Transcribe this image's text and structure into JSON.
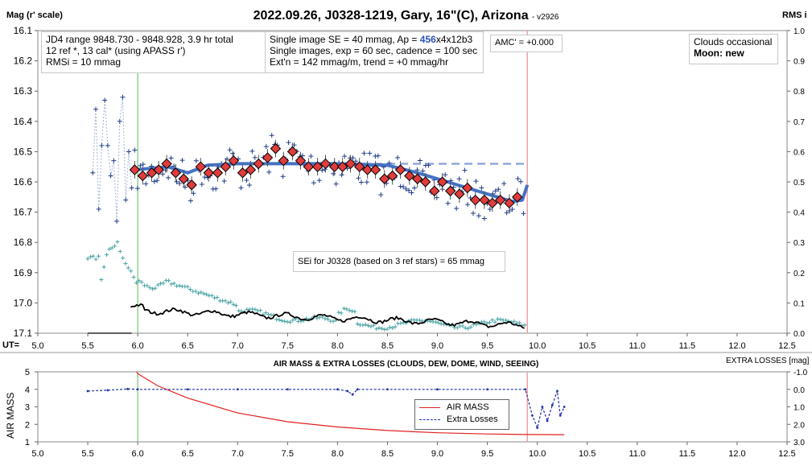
{
  "header": {
    "title": "2022.09.26, J0328-1219, Gary, 16\"(C), Arizona",
    "version": "- v2926",
    "y_label_left": "Mag (r' scale)",
    "y_label_right": "RMS i",
    "x_label": "UT="
  },
  "info_box_1": {
    "line1": "JD4 range 9848.730 - 9848.928, 3.9 hr total",
    "line2": "12 ref *, 13 cal*  (using APASS r')",
    "line3": "RMSi = 10 mmag"
  },
  "info_box_2": {
    "line1_prefix": "Single image SE = 40 mmag, Ap = ",
    "line1_ap": "456",
    "line1_suffix": "x4x12b3",
    "line2": "Single images, exp = 60 sec, cadence = 100 sec",
    "line3": "Ext'n = 142 mmag/m, trend = +0 mmag/hr"
  },
  "amc_box": {
    "text": "AMC' = +0.000"
  },
  "conditions_box": {
    "line1": "Clouds occasional",
    "line2": "Moon: new"
  },
  "sei_box": {
    "text": "SEi for J0328 (based on 3 ref stars) = 65 mmag"
  },
  "lower_panel": {
    "title": "AIR MASS & EXTRA LOSSES (CLOUDS, DEW, DOME, WIND, SEEING)",
    "right_label": "EXTRA LOSSES [mag]",
    "y_label": "AIR MASS",
    "legend": {
      "air_mass": "AIR MASS",
      "extra_losses": "Extra Losses"
    }
  },
  "colors": {
    "fit_line": "#4472c4",
    "binned_marker": "#e03c3c",
    "single_plus": "#1f3c88",
    "rms_plus": "#4aa3a3",
    "green_line": "#90d090",
    "red_line": "#f0a0a0",
    "air_mass_line": "#e02020",
    "extra_losses_line": "#1f2fa8"
  },
  "chart_data": [
    {
      "type": "scatter",
      "x_label": "UT=",
      "ylabel": "Mag (r' scale)",
      "y2label": "RMS i",
      "xlim": [
        5.0,
        12.5
      ],
      "ylim": [
        17.1,
        16.1
      ],
      "y2lim": [
        0.0,
        1.0
      ],
      "x_ticks": [
        "5.0",
        "5.5",
        "6.0",
        "6.5",
        "7.0",
        "7.5",
        "8.0",
        "8.5",
        "9.0",
        "9.5",
        "10.0",
        "10.5",
        "11.0",
        "11.5",
        "12.0",
        "12.5"
      ],
      "y_ticks": [
        "16.1",
        "16.2",
        "16.3",
        "16.4",
        "16.5",
        "16.6",
        "16.7",
        "16.8",
        "16.9",
        "17.0",
        "17.1"
      ],
      "y2_ticks": [
        "1.0",
        "0.9",
        "0.8",
        "0.7",
        "0.6",
        "0.5",
        "0.4",
        "0.3",
        "0.2",
        "0.1",
        "0.0"
      ],
      "vlines": [
        6.0,
        9.9
      ],
      "reference_mag": 16.54,
      "series": [
        {
          "kind": "binned",
          "x": [
            5.97,
            6.05,
            6.14,
            6.21,
            6.29,
            6.38,
            6.46,
            6.54,
            6.63,
            6.71,
            6.8,
            6.88,
            6.96,
            7.05,
            7.13,
            7.21,
            7.3,
            7.38,
            7.46,
            7.55,
            7.63,
            7.71,
            7.8,
            7.88,
            7.97,
            8.05,
            8.13,
            8.22,
            8.3,
            8.38,
            8.47,
            8.55,
            8.63,
            8.72,
            8.8,
            8.88,
            8.97,
            9.05,
            9.13,
            9.22,
            9.3,
            9.38,
            9.47,
            9.55,
            9.63,
            9.72,
            9.8
          ],
          "y": [
            16.56,
            16.58,
            16.57,
            16.56,
            16.54,
            16.57,
            16.59,
            16.61,
            16.55,
            16.57,
            16.57,
            16.55,
            16.53,
            16.57,
            16.56,
            16.54,
            16.52,
            16.49,
            16.53,
            16.5,
            16.53,
            16.55,
            16.55,
            16.54,
            16.55,
            16.55,
            16.54,
            16.55,
            16.56,
            16.56,
            16.59,
            16.58,
            16.56,
            16.58,
            16.59,
            16.6,
            16.63,
            16.6,
            16.63,
            16.64,
            16.62,
            16.66,
            16.66,
            16.67,
            16.66,
            16.67,
            16.65
          ]
        },
        {
          "kind": "fit",
          "x": [
            5.97,
            6.3,
            6.5,
            6.7,
            7.0,
            7.5,
            8.0,
            8.5,
            8.8,
            9.0,
            9.3,
            9.6,
            9.75,
            9.85,
            9.9
          ],
          "y": [
            16.56,
            16.55,
            16.57,
            16.545,
            16.54,
            16.54,
            16.54,
            16.545,
            16.57,
            16.59,
            16.62,
            16.65,
            16.665,
            16.66,
            16.61
          ]
        }
      ]
    },
    {
      "type": "line",
      "title": "AIR MASS & EXTRA LOSSES (CLOUDS, DEW, DOME, WIND, SEEING)",
      "xlim": [
        5.0,
        12.5
      ],
      "ylim": [
        1,
        5
      ],
      "y2lim": [
        3.0,
        -1.0
      ],
      "ylabel": "AIR MASS",
      "y2label": "EXTRA LOSSES [mag]",
      "x_ticks": [
        "5.0",
        "5.5",
        "6.0",
        "6.5",
        "7.0",
        "7.5",
        "8.0",
        "8.5",
        "9.0",
        "9.5",
        "10.0",
        "10.5",
        "11.0",
        "11.5",
        "12.0",
        "12.5"
      ],
      "y_ticks": [
        "5",
        "4",
        "3",
        "2",
        "1"
      ],
      "y2_ticks": [
        "-1.0",
        "0.0",
        "1.0",
        "2.0",
        "3.0"
      ],
      "vlines": [
        6.0,
        9.9
      ],
      "legend_position": "center",
      "series": [
        {
          "name": "AIR MASS",
          "x": [
            5.95,
            6.0,
            6.2,
            6.5,
            7.0,
            7.5,
            8.0,
            8.5,
            9.0,
            9.5,
            9.9,
            10.27
          ],
          "y": [
            5.1,
            4.9,
            4.2,
            3.5,
            2.65,
            2.15,
            1.85,
            1.65,
            1.52,
            1.45,
            1.42,
            1.41
          ]
        },
        {
          "name": "Extra Losses",
          "x": [
            5.5,
            5.7,
            5.9,
            6.0,
            6.5,
            7.0,
            7.5,
            8.0,
            8.1,
            8.15,
            8.2,
            8.5,
            9.0,
            9.5,
            9.88,
            9.95,
            10.0,
            10.05,
            10.1,
            10.15,
            10.2,
            10.23,
            10.27
          ],
          "y": [
            0.1,
            0.05,
            -0.02,
            0.0,
            0.0,
            0.0,
            0.0,
            0.0,
            0.1,
            0.3,
            0.0,
            0.0,
            0.0,
            0.0,
            0.0,
            1.5,
            2.2,
            1.0,
            1.8,
            0.9,
            0.1,
            1.5,
            1.0
          ]
        }
      ]
    }
  ]
}
